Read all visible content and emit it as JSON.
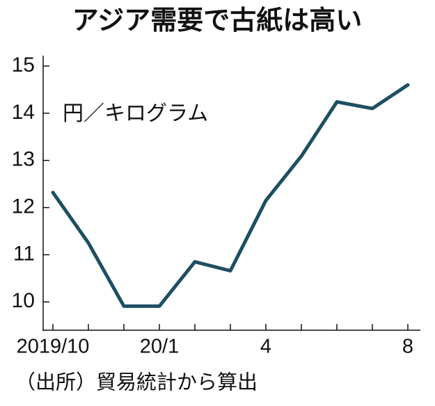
{
  "chart_data": {
    "type": "line",
    "title": "アジア需要で古紙は高い",
    "unit_label": "円／キログラム",
    "source": "（出所）貿易統計から算出",
    "categories": [
      "2019/10",
      null,
      null,
      "20/1",
      null,
      null,
      "4",
      null,
      null,
      null,
      "8"
    ],
    "values": [
      12.32,
      11.25,
      9.91,
      9.91,
      10.85,
      10.66,
      12.15,
      13.09,
      14.24,
      14.1,
      14.6
    ],
    "color": "#1d4f63",
    "ylim": [
      9.4,
      15
    ],
    "yticks": [
      10,
      11,
      12,
      13,
      14,
      15
    ]
  }
}
